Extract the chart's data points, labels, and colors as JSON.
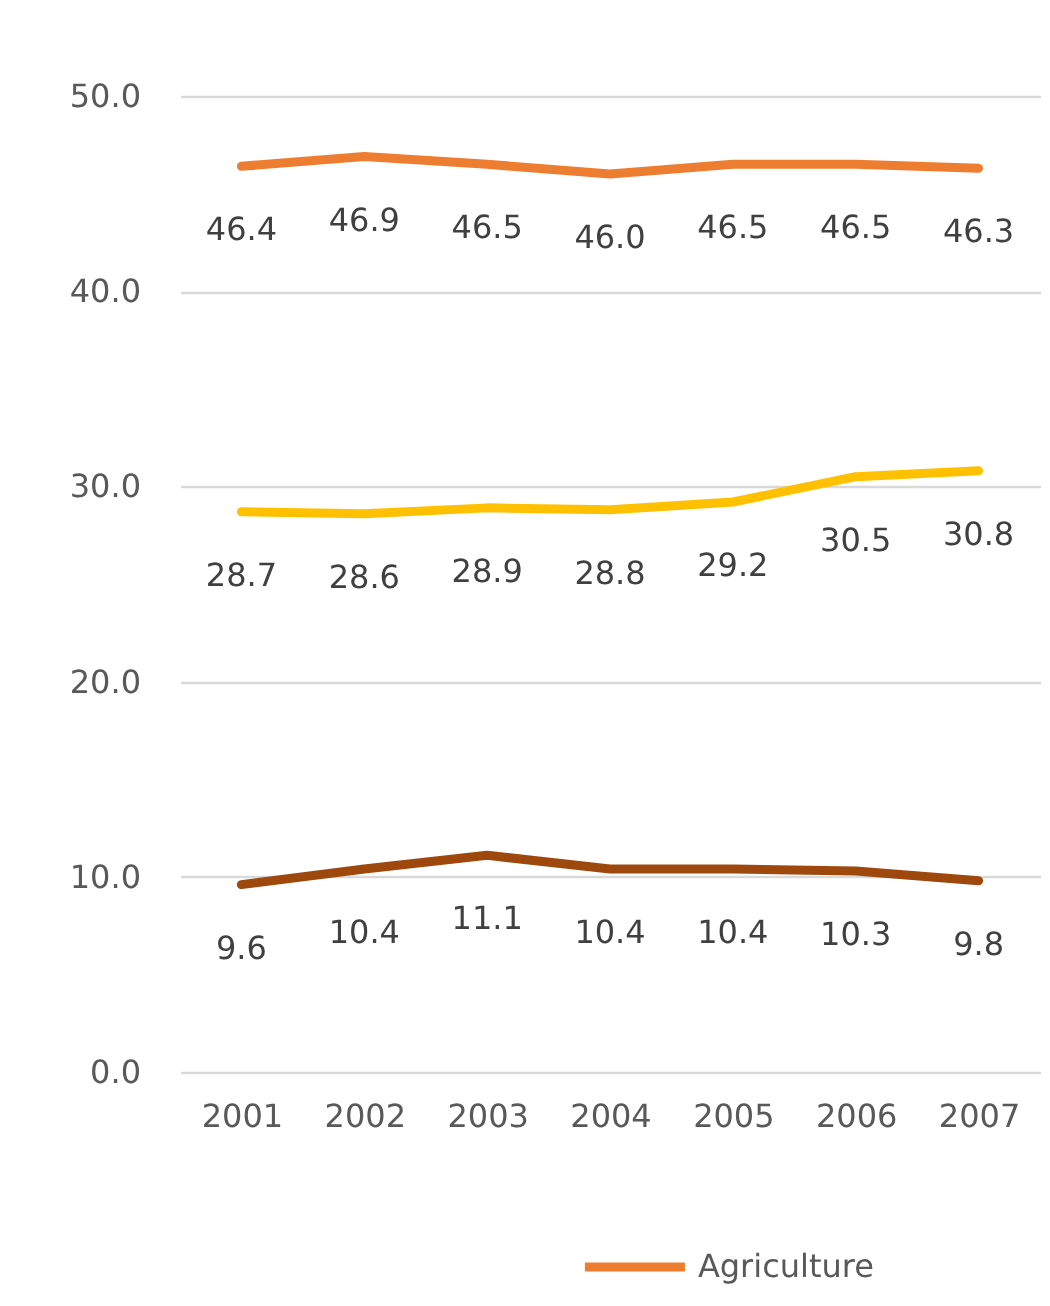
{
  "chart_data": {
    "type": "line",
    "categories": [
      "2001",
      "2002",
      "2003",
      "2004",
      "2005",
      "2006",
      "2007"
    ],
    "series": [
      {
        "name": "Agriculture",
        "color": "#ed7d31",
        "values": [
          46.4,
          46.9,
          46.5,
          46.0,
          46.5,
          46.5,
          46.3
        ],
        "value_labels": [
          "46.4",
          "46.9",
          "46.5",
          "46.0",
          "46.5",
          "46.5",
          "46.3"
        ]
      },
      {
        "color": "#ffc000",
        "values": [
          28.7,
          28.6,
          28.9,
          28.8,
          29.2,
          30.5,
          30.8
        ],
        "value_labels": [
          "28.7",
          "28.6",
          "28.9",
          "28.8",
          "29.2",
          "30.5",
          "30.8"
        ]
      },
      {
        "color": "#9e480e",
        "values": [
          9.6,
          10.4,
          11.1,
          10.4,
          10.4,
          10.3,
          9.8
        ],
        "value_labels": [
          "9.6",
          "10.4",
          "11.1",
          "10.4",
          "10.4",
          "10.3",
          "9.8"
        ]
      }
    ],
    "ylim": [
      0,
      50
    ],
    "yticks": [
      {
        "value": 0,
        "label": "0.0"
      },
      {
        "value": 10,
        "label": "10.0"
      },
      {
        "value": 20,
        "label": "20.0"
      },
      {
        "value": 30,
        "label": "30.0"
      },
      {
        "value": 40,
        "label": "40.0"
      },
      {
        "value": 50,
        "label": "50.0"
      }
    ],
    "grid": "y",
    "legend": "bottom"
  }
}
